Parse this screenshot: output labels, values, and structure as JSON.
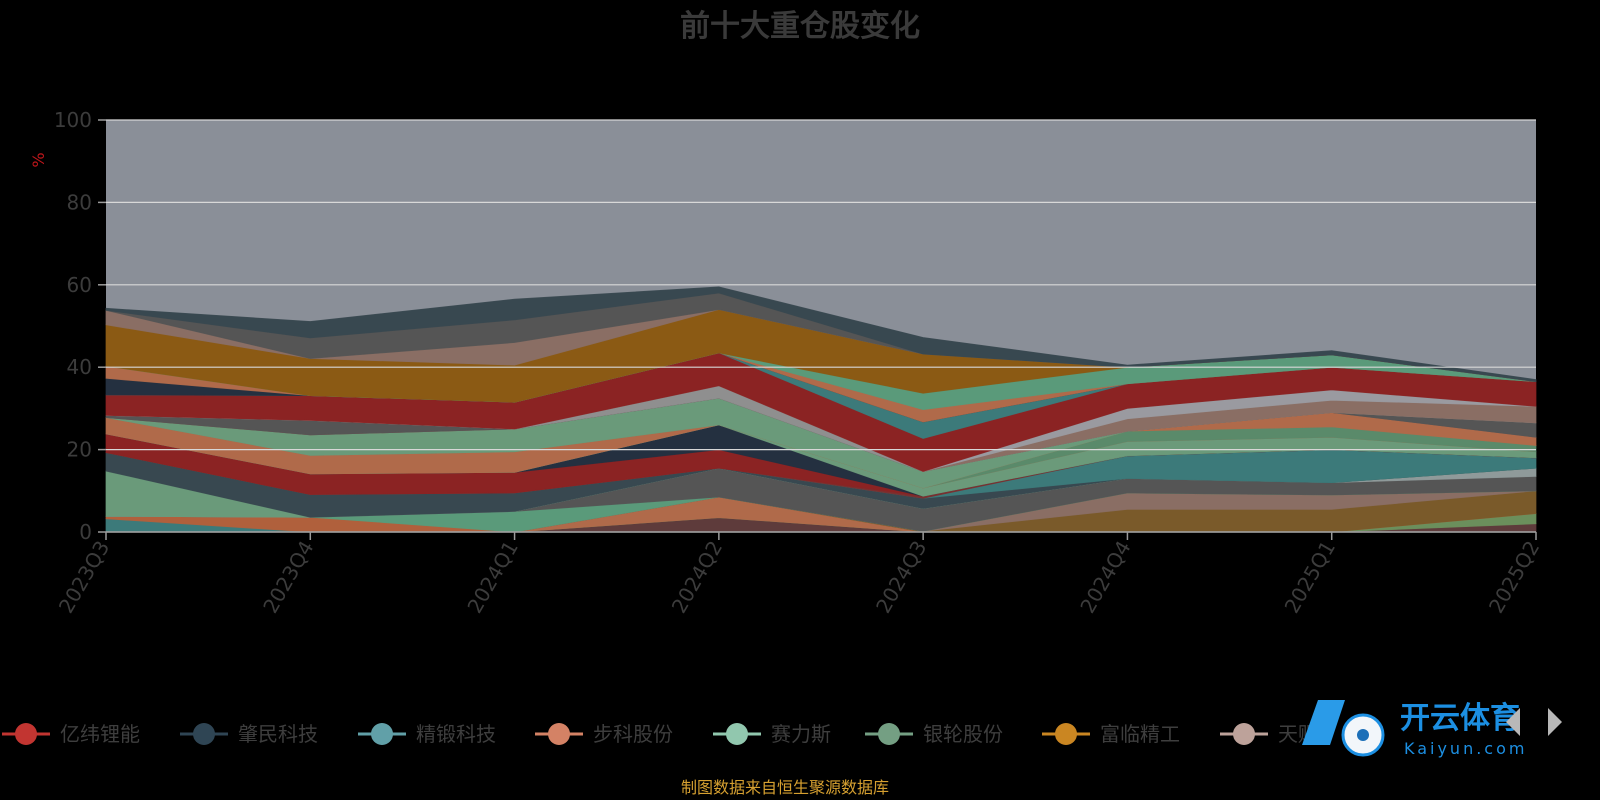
{
  "chart_data": {
    "type": "area",
    "title": "前十大重仓股变化",
    "ylabel": "%",
    "ylim": [
      0,
      100
    ],
    "yticks": [
      0,
      20,
      40,
      60,
      80,
      100
    ],
    "categories": [
      "2023Q3",
      "2023Q4",
      "2024Q1",
      "2024Q2",
      "2024Q3",
      "2024Q4",
      "2025Q1",
      "2025Q2"
    ],
    "grid": true,
    "legend_position": "bottom",
    "stacked": true,
    "series": [
      {
        "name": "",
        "color": "#5e3b3b",
        "values": [
          0,
          0,
          0,
          3.5,
          0,
          0,
          0,
          2.0
        ]
      },
      {
        "name": "",
        "color": "#6b8f5c",
        "values": [
          0,
          0,
          0,
          0,
          0,
          0,
          0,
          2.5
        ]
      },
      {
        "name": "",
        "color": "#b06a4a",
        "values": [
          0,
          0,
          0,
          5.0,
          0,
          0,
          0,
          0
        ]
      },
      {
        "name": "",
        "color": "#7a5a2a",
        "values": [
          0,
          0,
          0,
          0,
          0.2,
          5.5,
          5.5,
          5.5
        ]
      },
      {
        "name": "",
        "color": "#8a6e64",
        "values": [
          0,
          0,
          0,
          0,
          0,
          4.0,
          3.5,
          0
        ]
      },
      {
        "name": "",
        "color": "#3c7a7a",
        "values": [
          3.2,
          0,
          0,
          0,
          0,
          0,
          0,
          0
        ]
      },
      {
        "name": "",
        "color": "#b0603c",
        "values": [
          0.6,
          3.6,
          0,
          0,
          0,
          0,
          0,
          0
        ]
      },
      {
        "name": "",
        "color": "#5a9a7a",
        "values": [
          0,
          0,
          5.0,
          0,
          0,
          0,
          0,
          0
        ]
      },
      {
        "name": "",
        "color": "#555555",
        "values": [
          0,
          0,
          0,
          7.0,
          5.5,
          3.5,
          3.0,
          3.5
        ]
      },
      {
        "name": "",
        "color": "#8f9a9a",
        "values": [
          0,
          0,
          0,
          0,
          0,
          0,
          0,
          2.0
        ]
      },
      {
        "name": "",
        "color": "#6a9a7a",
        "values": [
          11.0,
          0,
          0,
          0,
          0,
          0,
          0,
          0
        ]
      },
      {
        "name": "",
        "color": "#384850",
        "values": [
          4.5,
          5.5,
          4.5,
          0,
          2.5,
          0,
          0,
          0
        ]
      },
      {
        "name": "",
        "color": "#3c7a7a",
        "values": [
          0,
          0,
          0,
          0,
          0,
          5.5,
          8.0,
          2.5
        ]
      },
      {
        "name": "",
        "color": "#7a3030",
        "values": [
          0,
          0,
          0,
          0,
          0.5,
          0,
          0,
          0
        ]
      },
      {
        "name": "",
        "color": "#8b2323",
        "values": [
          4.5,
          5.0,
          5.0,
          4.5,
          0,
          0,
          0,
          0
        ]
      },
      {
        "name": "",
        "color": "#243040",
        "values": [
          0,
          0,
          0,
          6.0,
          0,
          0,
          0,
          0
        ]
      },
      {
        "name": "",
        "color": "#6b9a7a",
        "values": [
          0,
          0,
          0,
          0,
          2.0,
          3.5,
          3.0,
          1.5
        ]
      },
      {
        "name": "",
        "color": "#b06a4a",
        "values": [
          4.0,
          4.5,
          5.0,
          0,
          0,
          0,
          0,
          0
        ]
      },
      {
        "name": "",
        "color": "#5a8a6a",
        "values": [
          0,
          0,
          0,
          0,
          0,
          2.5,
          2.5,
          1.5
        ]
      },
      {
        "name": "",
        "color": "#b06a4a",
        "values": [
          0,
          0,
          0,
          0,
          0,
          0,
          3.5,
          2.0
        ]
      },
      {
        "name": "",
        "color": "#6a9a7a",
        "values": [
          0,
          5.0,
          5.5,
          6.5,
          4.0,
          0,
          0,
          0
        ]
      },
      {
        "name": "",
        "color": "#8a4040",
        "values": [
          0,
          0,
          0,
          0,
          0,
          0,
          0,
          0
        ]
      },
      {
        "name": "",
        "color": "#555555",
        "values": [
          0.5,
          3.5,
          0,
          0,
          0,
          0,
          0,
          3.5
        ]
      },
      {
        "name": "",
        "color": "#8f8f8f",
        "values": [
          0,
          0,
          0,
          3.0,
          0,
          0,
          0,
          0
        ]
      },
      {
        "name": "",
        "color": "#8a6e64",
        "values": [
          0,
          0,
          0,
          0,
          0,
          3.0,
          3.0,
          4.0
        ]
      },
      {
        "name": "",
        "color": "#9a9aa0",
        "values": [
          0,
          0,
          0,
          0,
          0,
          2.5,
          2.5,
          0
        ]
      },
      {
        "name": "",
        "color": "#8b2323",
        "values": [
          5.0,
          6.0,
          6.5,
          8.0,
          8.0,
          6.0,
          5.5,
          6.0
        ]
      },
      {
        "name": "",
        "color": "#3c7a7a",
        "values": [
          0,
          0,
          0,
          0,
          4.0,
          0,
          0,
          0
        ]
      },
      {
        "name": "",
        "color": "#243040",
        "values": [
          4.0,
          0,
          0,
          0,
          0,
          0,
          0,
          0
        ]
      },
      {
        "name": "",
        "color": "#b06a4a",
        "values": [
          3.0,
          0,
          0,
          0,
          3.0,
          0,
          0,
          0
        ]
      },
      {
        "name": "",
        "color": "#5a9a7a",
        "values": [
          0,
          0,
          0,
          0,
          4.0,
          4.0,
          3.0,
          0
        ]
      },
      {
        "name": "",
        "color": "#8b5a14",
        "values": [
          10.0,
          9.0,
          9.0,
          10.5,
          9.5,
          0,
          0,
          0
        ]
      },
      {
        "name": "",
        "color": "#8a6e64",
        "values": [
          3.5,
          0,
          5.5,
          0,
          0,
          0,
          0,
          0
        ]
      },
      {
        "name": "",
        "color": "#555555",
        "values": [
          0,
          5.0,
          5.5,
          4.0,
          0,
          0,
          0,
          0
        ]
      },
      {
        "name": "",
        "color": "#384850",
        "values": [
          0.5,
          4.0,
          5.0,
          1.5,
          4.0,
          0.5,
          1.0,
          0.5
        ]
      }
    ],
    "legend": [
      {
        "name": "亿纬锂能",
        "color": "#c23531"
      },
      {
        "name": "肇民科技",
        "color": "#2f4554"
      },
      {
        "name": "精锻科技",
        "color": "#61a0a8"
      },
      {
        "name": "步科股份",
        "color": "#d48265"
      },
      {
        "name": "赛力斯",
        "color": "#91c7ae"
      },
      {
        "name": "银轮股份",
        "color": "#749f83"
      },
      {
        "name": "富临精工",
        "color": "#ca8622"
      },
      {
        "name": "天赐",
        "color": "#bda29a"
      }
    ]
  },
  "footer": {
    "source": "制图数据来自恒生聚源数据库"
  },
  "watermark": {
    "brand": "开云体育",
    "brand_en": "Kaiyun.com"
  },
  "colors": {
    "plot_bg": "#8a8f98",
    "grid": "#d8d8d8",
    "background": "#000000"
  }
}
